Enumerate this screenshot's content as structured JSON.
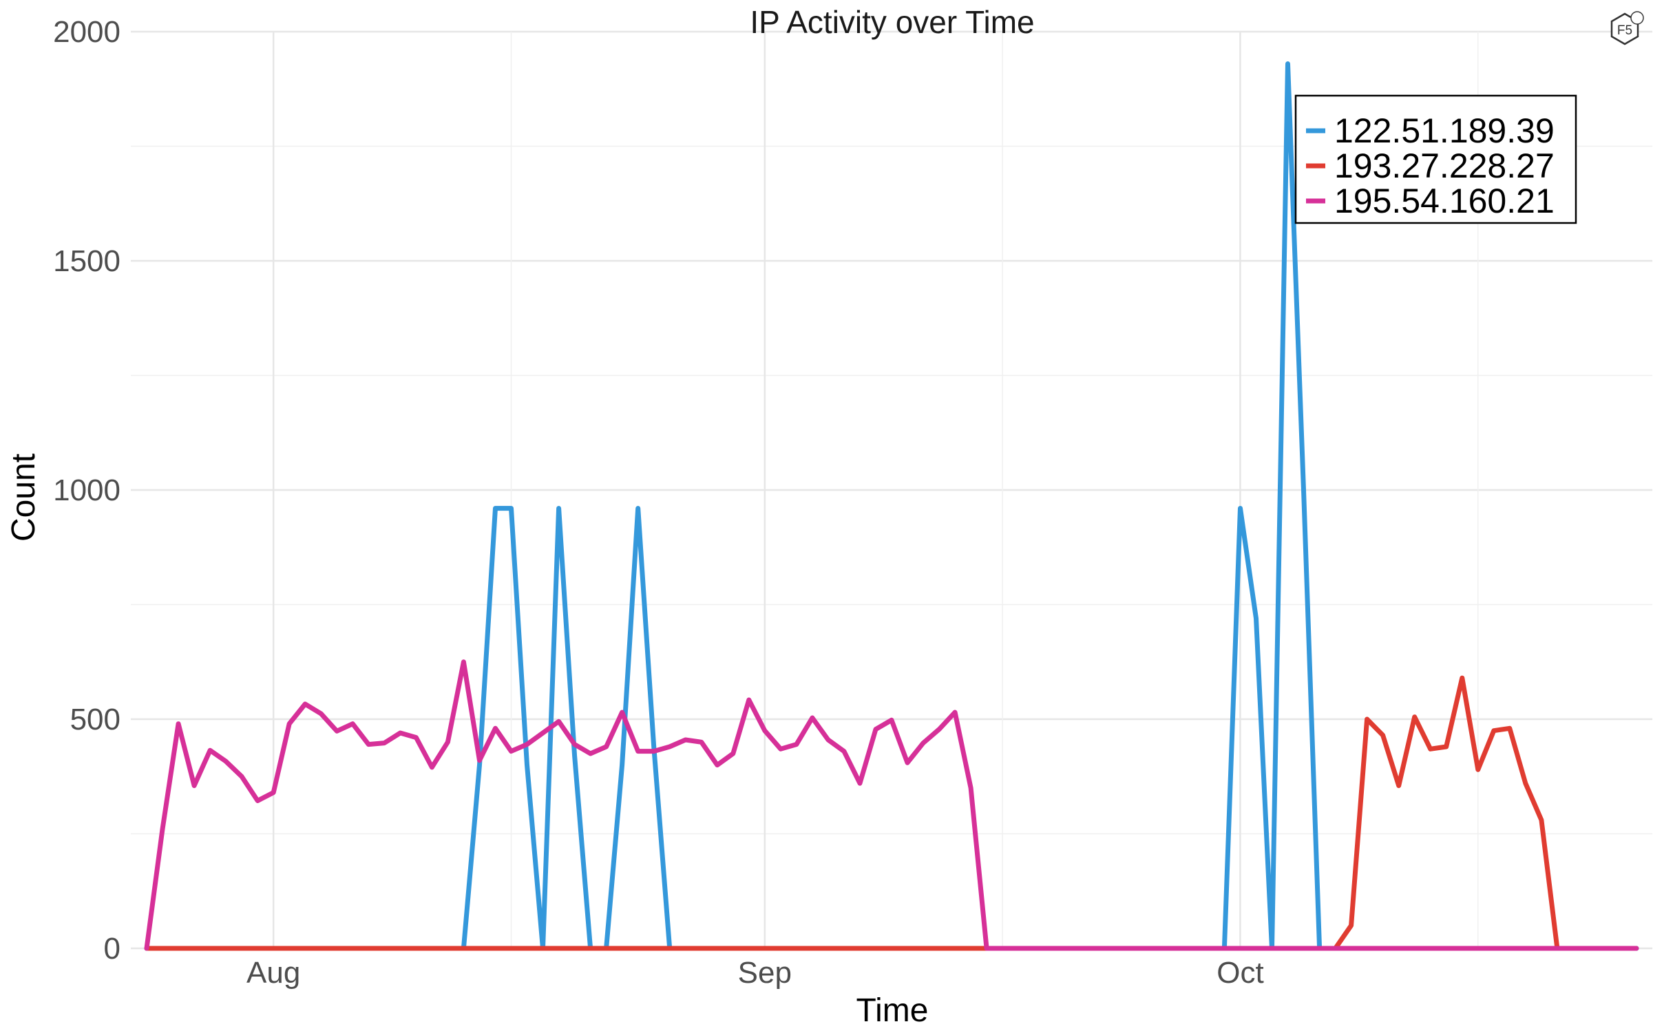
{
  "logo_text": "F5",
  "chart_data": {
    "type": "line",
    "title": "IP Activity over Time",
    "xlabel": "Time",
    "ylabel": "Count",
    "ylim": [
      0,
      2000
    ],
    "yticks": [
      0,
      500,
      1000,
      1500,
      2000
    ],
    "xlim": [
      "2023-07-23",
      "2023-10-27"
    ],
    "xticks": [
      {
        "label": "Aug",
        "date": "2023-08-01"
      },
      {
        "label": "Sep",
        "date": "2023-09-01"
      },
      {
        "label": "Oct",
        "date": "2023-10-01"
      }
    ],
    "x_minor_grid_dates": [
      "2023-08-16",
      "2023-09-16",
      "2023-10-16"
    ],
    "grid": true,
    "legend_position": "top-right",
    "series": [
      {
        "name": "122.51.189.39",
        "color": "#3498db",
        "points": [
          [
            "2023-07-24",
            0
          ],
          [
            "2023-08-13",
            0
          ],
          [
            "2023-08-14",
            400
          ],
          [
            "2023-08-15",
            960
          ],
          [
            "2023-08-16",
            960
          ],
          [
            "2023-08-17",
            400
          ],
          [
            "2023-08-18",
            0
          ],
          [
            "2023-08-19",
            960
          ],
          [
            "2023-08-20",
            420
          ],
          [
            "2023-08-21",
            0
          ],
          [
            "2023-08-22",
            0
          ],
          [
            "2023-08-23",
            400
          ],
          [
            "2023-08-24",
            960
          ],
          [
            "2023-08-25",
            440
          ],
          [
            "2023-08-26",
            0
          ],
          [
            "2023-09-30",
            0
          ],
          [
            "2023-10-01",
            960
          ],
          [
            "2023-10-02",
            720
          ],
          [
            "2023-10-03",
            0
          ],
          [
            "2023-10-04",
            1930
          ],
          [
            "2023-10-05",
            1000
          ],
          [
            "2023-10-06",
            0
          ],
          [
            "2023-10-26",
            0
          ]
        ]
      },
      {
        "name": "193.27.228.27",
        "color": "#e03c31",
        "points": [
          [
            "2023-07-24",
            0
          ],
          [
            "2023-10-07",
            0
          ],
          [
            "2023-10-08",
            50
          ],
          [
            "2023-10-09",
            500
          ],
          [
            "2023-10-10",
            465
          ],
          [
            "2023-10-11",
            355
          ],
          [
            "2023-10-12",
            505
          ],
          [
            "2023-10-13",
            435
          ],
          [
            "2023-10-14",
            440
          ],
          [
            "2023-10-15",
            590
          ],
          [
            "2023-10-16",
            390
          ],
          [
            "2023-10-17",
            475
          ],
          [
            "2023-10-18",
            480
          ],
          [
            "2023-10-19",
            360
          ],
          [
            "2023-10-20",
            280
          ],
          [
            "2023-10-21",
            0
          ]
        ]
      },
      {
        "name": "195.54.160.21",
        "color": "#d63098",
        "points": [
          [
            "2023-07-24",
            0
          ],
          [
            "2023-07-25",
            260
          ],
          [
            "2023-07-26",
            490
          ],
          [
            "2023-07-27",
            355
          ],
          [
            "2023-07-28",
            432
          ],
          [
            "2023-07-29",
            408
          ],
          [
            "2023-07-30",
            375
          ],
          [
            "2023-07-31",
            322
          ],
          [
            "2023-08-01",
            340
          ],
          [
            "2023-08-02",
            490
          ],
          [
            "2023-08-03",
            533
          ],
          [
            "2023-08-04",
            512
          ],
          [
            "2023-08-05",
            474
          ],
          [
            "2023-08-06",
            490
          ],
          [
            "2023-08-07",
            445
          ],
          [
            "2023-08-08",
            448
          ],
          [
            "2023-08-09",
            470
          ],
          [
            "2023-08-10",
            460
          ],
          [
            "2023-08-11",
            395
          ],
          [
            "2023-08-12",
            450
          ],
          [
            "2023-08-13",
            625
          ],
          [
            "2023-08-14",
            410
          ],
          [
            "2023-08-15",
            480
          ],
          [
            "2023-08-16",
            430
          ],
          [
            "2023-08-17",
            445
          ],
          [
            "2023-08-18",
            470
          ],
          [
            "2023-08-19",
            495
          ],
          [
            "2023-08-20",
            445
          ],
          [
            "2023-08-21",
            425
          ],
          [
            "2023-08-22",
            440
          ],
          [
            "2023-08-23",
            515
          ],
          [
            "2023-08-24",
            430
          ],
          [
            "2023-08-25",
            430
          ],
          [
            "2023-08-26",
            440
          ],
          [
            "2023-08-27",
            455
          ],
          [
            "2023-08-28",
            450
          ],
          [
            "2023-08-29",
            400
          ],
          [
            "2023-08-30",
            425
          ],
          [
            "2023-08-31",
            542
          ],
          [
            "2023-09-01",
            475
          ],
          [
            "2023-09-02",
            435
          ],
          [
            "2023-09-03",
            445
          ],
          [
            "2023-09-04",
            503
          ],
          [
            "2023-09-05",
            455
          ],
          [
            "2023-09-06",
            430
          ],
          [
            "2023-09-07",
            360
          ],
          [
            "2023-09-08",
            478
          ],
          [
            "2023-09-09",
            498
          ],
          [
            "2023-09-10",
            405
          ],
          [
            "2023-09-11",
            448
          ],
          [
            "2023-09-12",
            478
          ],
          [
            "2023-09-13",
            515
          ],
          [
            "2023-09-14",
            350
          ],
          [
            "2023-09-15",
            0
          ],
          [
            "2023-10-26",
            0
          ]
        ]
      }
    ]
  }
}
